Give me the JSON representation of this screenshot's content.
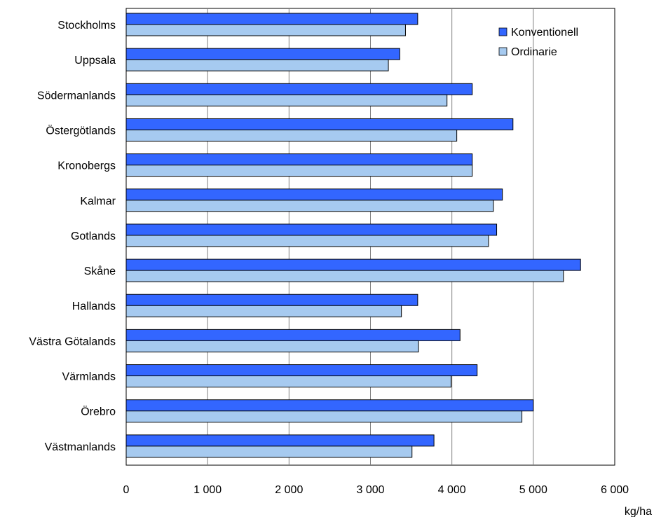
{
  "chart_data": {
    "type": "bar",
    "orientation": "horizontal",
    "categories": [
      "Stockholms",
      "Uppsala",
      "Södermanlands",
      "Östergötlands",
      "Kronobergs",
      "Kalmar",
      "Gotlands",
      "Skåne",
      "Hallands",
      "Västra Götalands",
      "Värmlands",
      "Örebro",
      "Västmanlands"
    ],
    "series": [
      {
        "name": "Konventionell",
        "color": "#3366ff",
        "values": [
          3580,
          3360,
          4250,
          4750,
          4250,
          4620,
          4550,
          5580,
          3580,
          4100,
          4310,
          5000,
          3780
        ]
      },
      {
        "name": "Ordinarie",
        "color": "#a6caf0",
        "values": [
          3430,
          3220,
          3940,
          4060,
          4250,
          4510,
          4450,
          5370,
          3380,
          3590,
          3990,
          4860,
          3510
        ]
      }
    ],
    "xlim": [
      0,
      6000
    ],
    "xticks": [
      "0",
      "1 000",
      "2 000",
      "3 000",
      "4 000",
      "5 000",
      "6 000"
    ],
    "xticks_values": [
      0,
      1000,
      2000,
      3000,
      4000,
      5000,
      6000
    ],
    "xlabel": "kg/ha",
    "ylabel": "",
    "title": "",
    "grid": "vertical",
    "legend": "top-right"
  }
}
